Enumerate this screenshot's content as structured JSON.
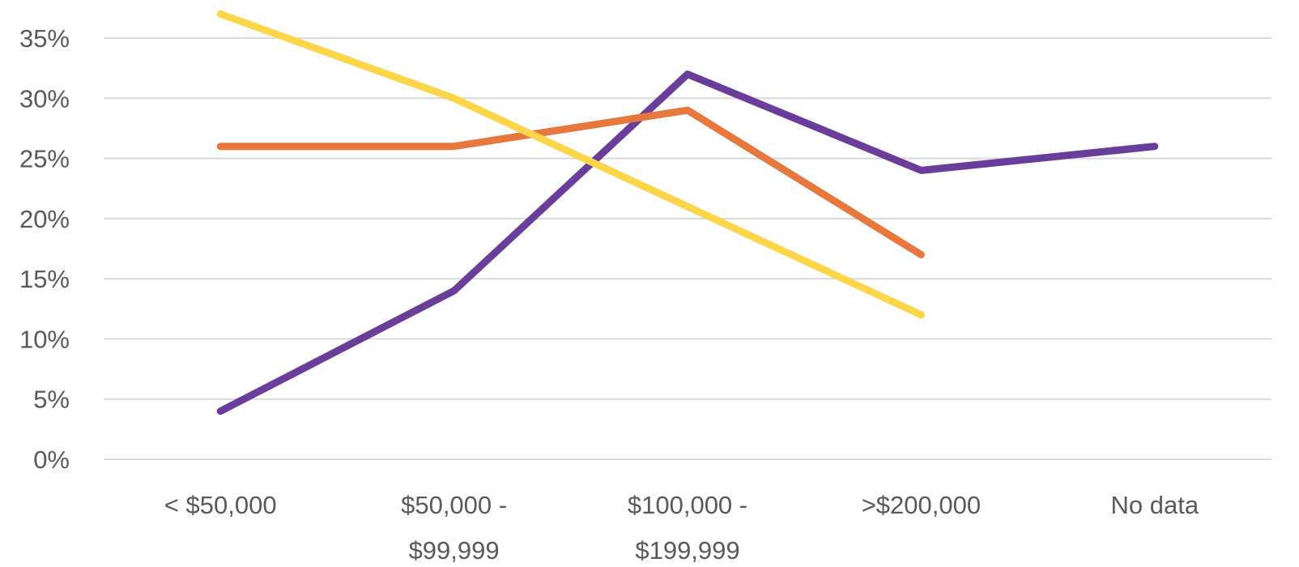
{
  "chart_data": {
    "type": "line",
    "title": "",
    "xlabel": "",
    "ylabel": "",
    "categories": [
      [
        "< $50,000"
      ],
      [
        "$50,000 -",
        "$99,999"
      ],
      [
        "$100,000 -",
        "$199,999"
      ],
      [
        ">$200,000"
      ],
      [
        "No data"
      ]
    ],
    "y_ticks": [
      "0%",
      "5%",
      "10%",
      "15%",
      "20%",
      "25%",
      "30%",
      "35%"
    ],
    "y_tick_values": [
      0,
      5,
      10,
      15,
      20,
      25,
      30,
      35
    ],
    "ylim": [
      0,
      35
    ],
    "grid": true,
    "legend": "none",
    "series": [
      {
        "color": "#6a3d9a",
        "values": [
          4,
          14,
          32,
          24,
          26
        ]
      },
      {
        "color": "#e8773d",
        "values": [
          26,
          26,
          29,
          17,
          null
        ]
      },
      {
        "color": "#fdd54a",
        "values": [
          37,
          30,
          21,
          12,
          null
        ]
      }
    ]
  }
}
